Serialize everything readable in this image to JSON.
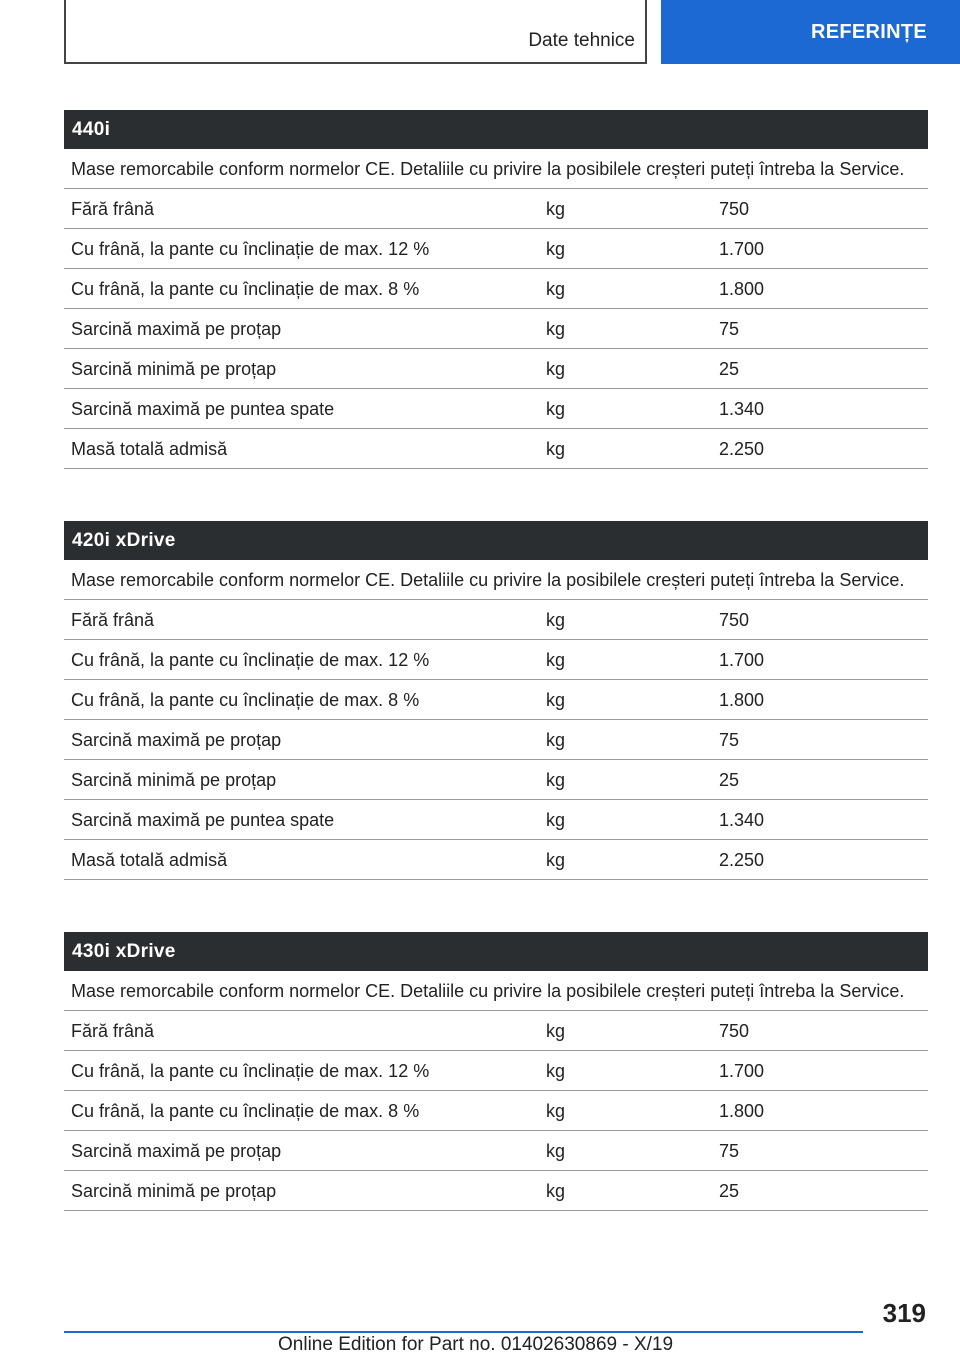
{
  "header": {
    "section": "Date tehnice",
    "chapter": "REFERINȚE"
  },
  "sections": [
    {
      "title": "440i",
      "note": "Mase remorcabile conform normelor CE. Detaliile cu privire la posibilele creșteri puteți întreba la Ser­vice.",
      "rows": [
        {
          "label": "Fără frână",
          "unit": "kg",
          "value": "750"
        },
        {
          "label": "Cu frână, la pante cu înclinație de max. 12 %",
          "unit": "kg",
          "value": "1.700"
        },
        {
          "label": "Cu frână, la pante cu înclinație de max. 8 %",
          "unit": "kg",
          "value": "1.800"
        },
        {
          "label": "Sarcină maximă pe proțap",
          "unit": "kg",
          "value": "75"
        },
        {
          "label": "Sarcină minimă pe proțap",
          "unit": "kg",
          "value": "25"
        },
        {
          "label": "Sarcină maximă pe puntea spate",
          "unit": "kg",
          "value": "1.340"
        },
        {
          "label": "Masă totală admisă",
          "unit": "kg",
          "value": "2.250"
        }
      ]
    },
    {
      "title": "420i xDrive",
      "note": "Mase remorcabile conform normelor CE. Detaliile cu privire la posibilele creșteri puteți întreba la Ser­vice.",
      "rows": [
        {
          "label": "Fără frână",
          "unit": "kg",
          "value": "750"
        },
        {
          "label": "Cu frână, la pante cu înclinație de max. 12 %",
          "unit": "kg",
          "value": "1.700"
        },
        {
          "label": "Cu frână, la pante cu înclinație de max. 8 %",
          "unit": "kg",
          "value": "1.800"
        },
        {
          "label": "Sarcină maximă pe proțap",
          "unit": "kg",
          "value": "75"
        },
        {
          "label": "Sarcină minimă pe proțap",
          "unit": "kg",
          "value": "25"
        },
        {
          "label": "Sarcină maximă pe puntea spate",
          "unit": "kg",
          "value": "1.340"
        },
        {
          "label": "Masă totală admisă",
          "unit": "kg",
          "value": "2.250"
        }
      ]
    },
    {
      "title": "430i xDrive",
      "note": "Mase remorcabile conform normelor CE. Detaliile cu privire la posibilele creșteri puteți întreba la Ser­vice.",
      "rows": [
        {
          "label": "Fără frână",
          "unit": "kg",
          "value": "750"
        },
        {
          "label": "Cu frână, la pante cu înclinație de max. 12 %",
          "unit": "kg",
          "value": "1.700"
        },
        {
          "label": "Cu frână, la pante cu înclinație de max. 8 %",
          "unit": "kg",
          "value": "1.800"
        },
        {
          "label": "Sarcină maximă pe proțap",
          "unit": "kg",
          "value": "75"
        },
        {
          "label": "Sarcină minimă pe proțap",
          "unit": "kg",
          "value": "25"
        }
      ]
    }
  ],
  "footer": {
    "page_number": "319",
    "edition": "Online Edition for Part no. 01402630869 - X/19"
  },
  "colors": {
    "accent": "#1c69d4",
    "title_bar": "#2b2e30"
  }
}
